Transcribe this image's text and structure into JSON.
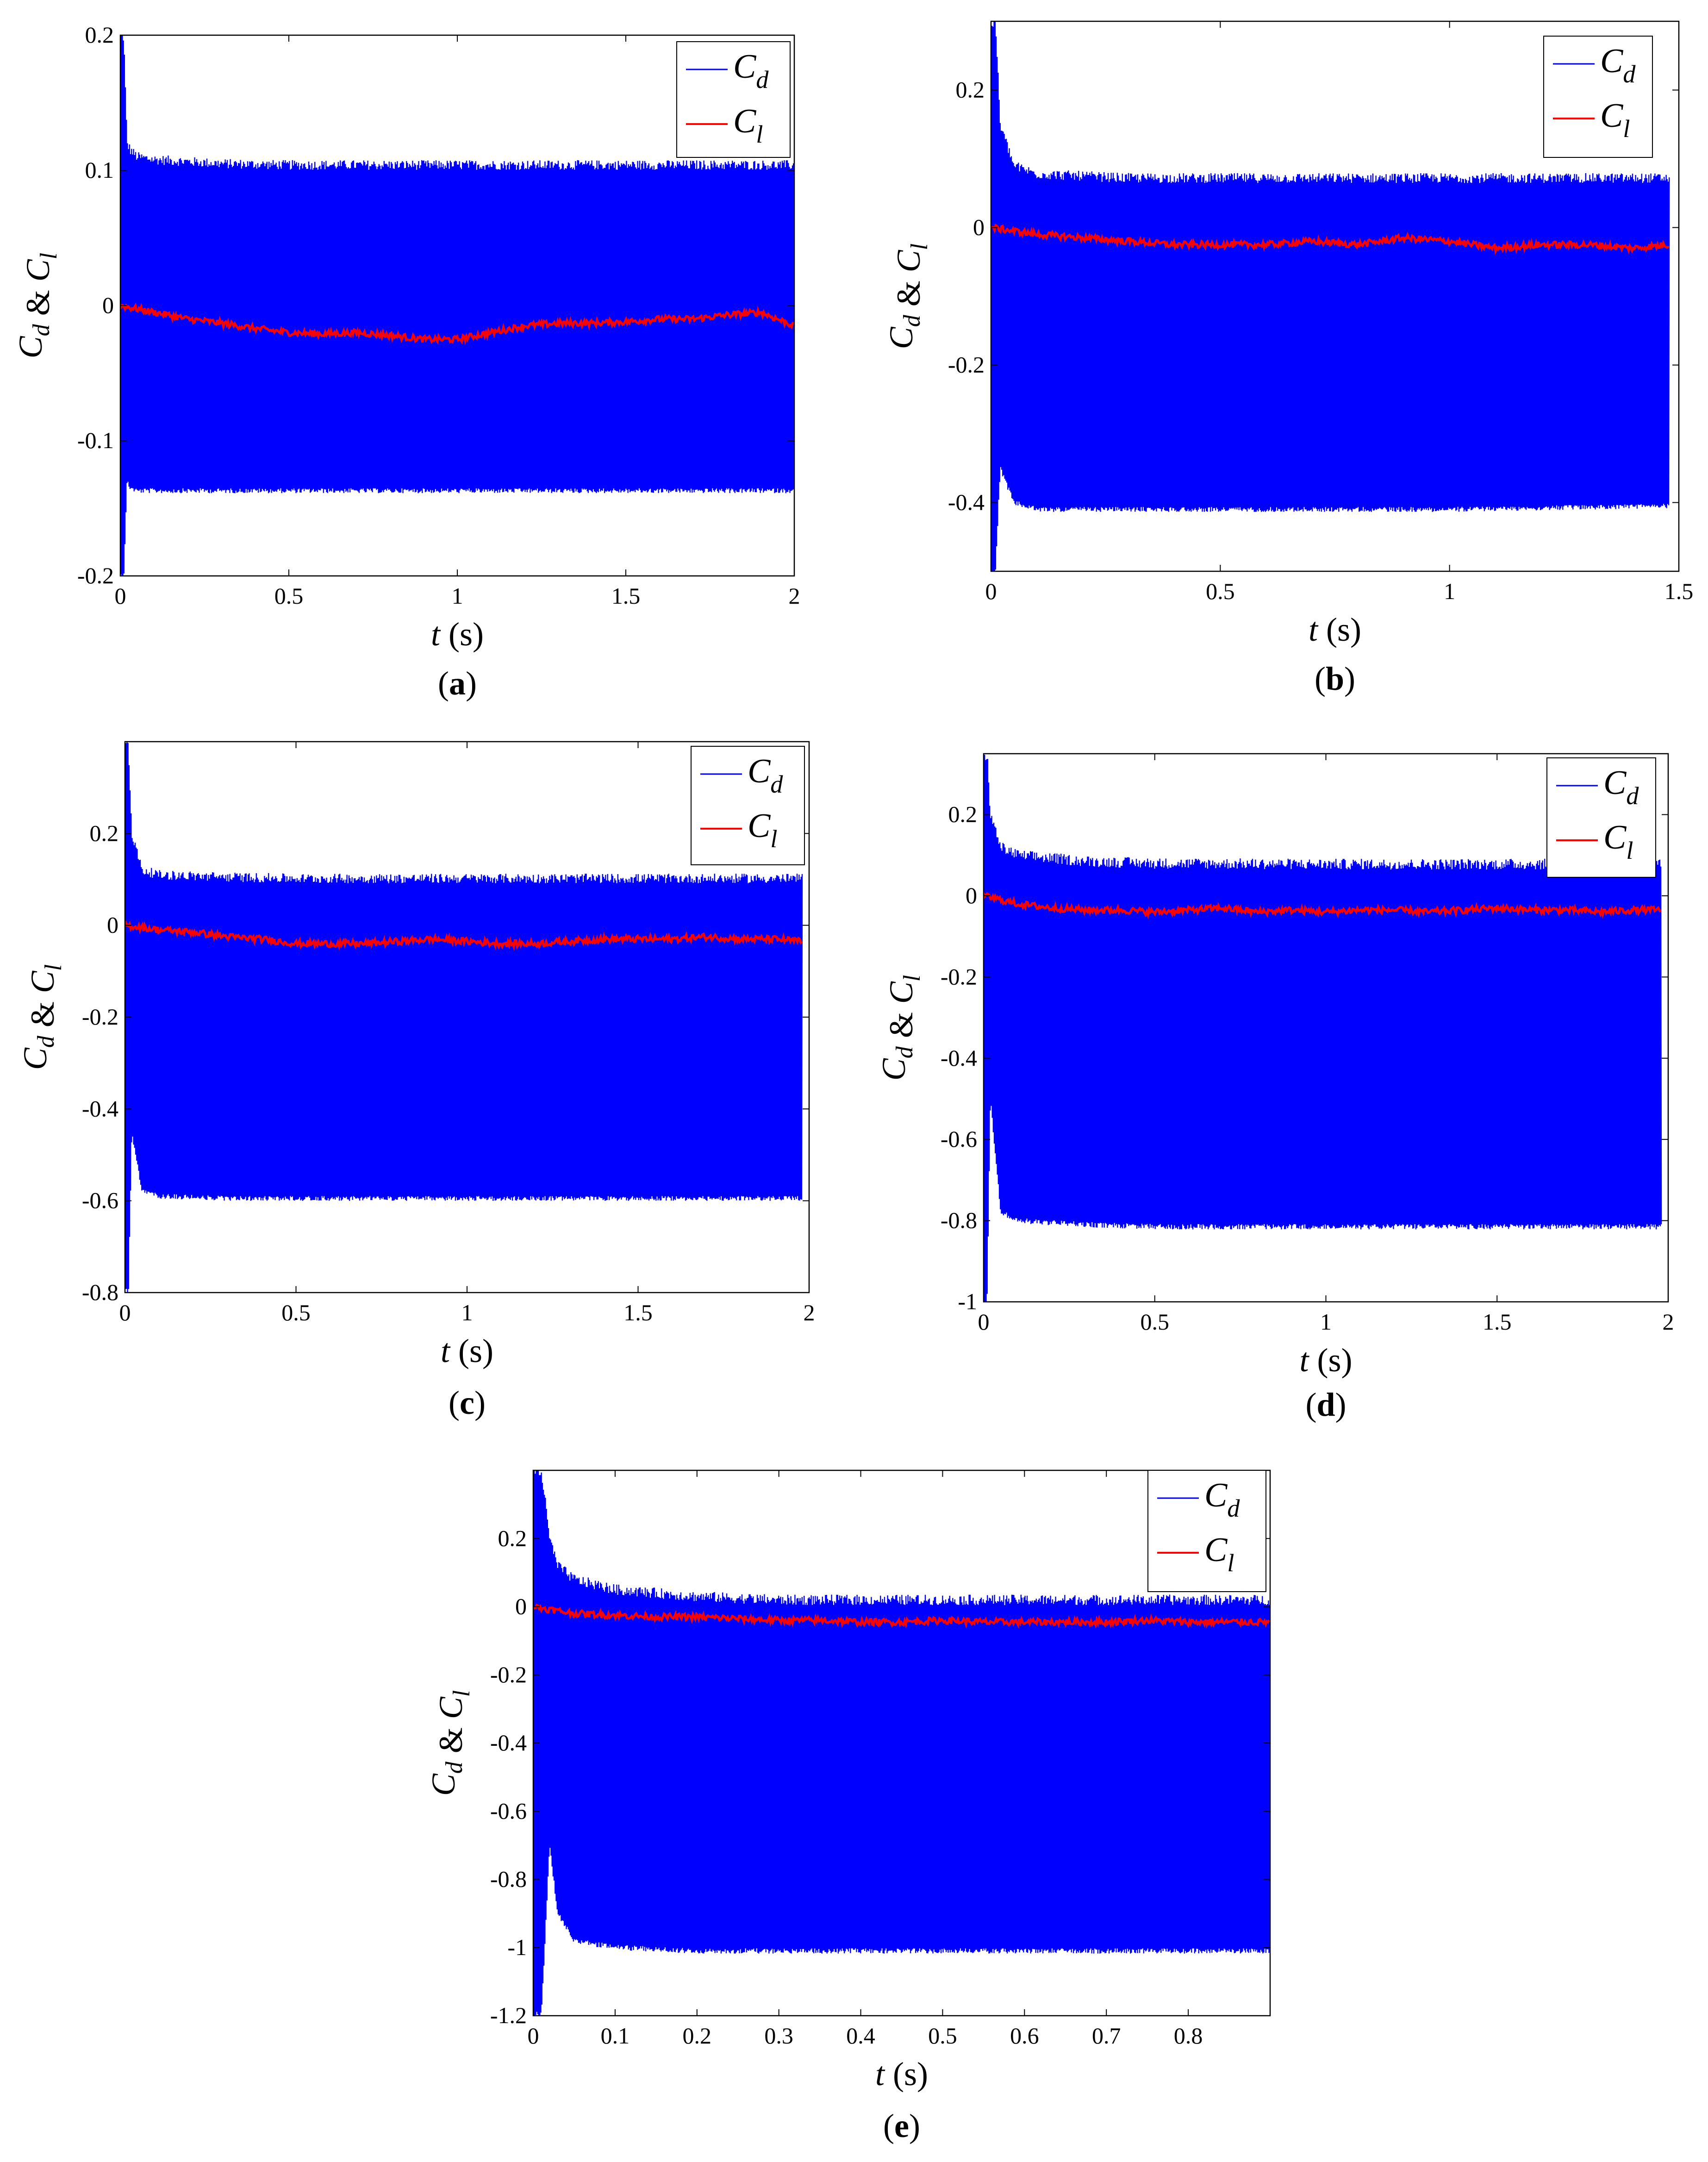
{
  "colors": {
    "drag": "#0000ff",
    "lift": "#ff0000",
    "axis": "#000000",
    "background": "#ffffff"
  },
  "chart_data": [
    {
      "panel": "a",
      "type": "line",
      "caption": "(a)",
      "xlabel": "t (s)",
      "ylabel": "Cd & Cl",
      "xlim": [
        0,
        2
      ],
      "ylim": [
        -0.2,
        0.2
      ],
      "xticks": [
        0,
        0.5,
        1,
        1.5,
        2
      ],
      "xtick_labels": [
        "0",
        "0.5",
        "1",
        "1.5",
        "2"
      ],
      "yticks": [
        -0.2,
        -0.1,
        0,
        0.1,
        0.2
      ],
      "ytick_labels": [
        "-0.2",
        "-0.1",
        "0",
        "0.1",
        "0.2"
      ],
      "legend_position": "top-right",
      "series": [
        {
          "name": "Cd",
          "base": "C",
          "sub": "d",
          "x": [
            0,
            0.01,
            0.02,
            0.03,
            0.05,
            0.1,
            0.3,
            0.5,
            1.0,
            1.5,
            2.0
          ],
          "upper": [
            0.2,
            0.2,
            0.12,
            0.115,
            0.11,
            0.108,
            0.105,
            0.104,
            0.104,
            0.104,
            0.104
          ],
          "lower": [
            -0.2,
            -0.2,
            -0.13,
            -0.135,
            -0.137,
            -0.137,
            -0.137,
            -0.137,
            -0.137,
            -0.137,
            -0.137
          ]
        },
        {
          "name": "Cl",
          "base": "C",
          "sub": "l",
          "x": [
            0,
            0.1,
            0.2,
            0.3,
            0.4,
            0.5,
            0.6,
            0.7,
            0.8,
            0.9,
            1.0,
            1.1,
            1.2,
            1.3,
            1.4,
            1.5,
            1.6,
            1.7,
            1.8,
            1.9,
            2.0
          ],
          "y": [
            0,
            -0.005,
            -0.01,
            -0.013,
            -0.017,
            -0.02,
            -0.021,
            -0.02,
            -0.022,
            -0.025,
            -0.025,
            -0.02,
            -0.015,
            -0.013,
            -0.013,
            -0.012,
            -0.01,
            -0.01,
            -0.007,
            -0.005,
            -0.015
          ]
        }
      ]
    },
    {
      "panel": "b",
      "type": "line",
      "caption": "(b)",
      "xlabel": "t (s)",
      "ylabel": "Cd & Cl",
      "xlim": [
        0,
        1.5
      ],
      "ylim": [
        -0.5,
        0.3
      ],
      "xticks": [
        0,
        0.5,
        1,
        1.5
      ],
      "xtick_labels": [
        "0",
        "0.5",
        "1",
        "1.5"
      ],
      "yticks": [
        -0.4,
        -0.2,
        0,
        0.2
      ],
      "ytick_labels": [
        "-0.4",
        "-0.2",
        "0",
        "0.2"
      ],
      "legend_position": "top-right",
      "series": [
        {
          "name": "Cd",
          "base": "C",
          "sub": "d",
          "x": [
            0,
            0.01,
            0.02,
            0.05,
            0.1,
            0.3,
            0.5,
            1.0,
            1.48
          ],
          "upper": [
            0.3,
            0.3,
            0.15,
            0.09,
            0.078,
            0.072,
            0.072,
            0.072,
            0.072
          ],
          "lower": [
            -0.5,
            -0.5,
            -0.35,
            -0.4,
            -0.41,
            -0.41,
            -0.41,
            -0.41,
            -0.405
          ]
        },
        {
          "name": "Cl",
          "base": "C",
          "sub": "l",
          "x": [
            0,
            0.1,
            0.2,
            0.3,
            0.4,
            0.5,
            0.6,
            0.7,
            0.8,
            0.9,
            1.0,
            1.1,
            1.2,
            1.3,
            1.4,
            1.48
          ],
          "y": [
            0,
            -0.01,
            -0.015,
            -0.02,
            -0.025,
            -0.025,
            -0.025,
            -0.02,
            -0.025,
            -0.015,
            -0.02,
            -0.03,
            -0.025,
            -0.025,
            -0.03,
            -0.025
          ]
        }
      ]
    },
    {
      "panel": "c",
      "type": "line",
      "caption": "(c)",
      "xlabel": "t (s)",
      "ylabel": "Cd & Cl",
      "xlim": [
        0,
        2
      ],
      "ylim": [
        -0.8,
        0.4
      ],
      "xticks": [
        0,
        0.5,
        1,
        1.5,
        2
      ],
      "xtick_labels": [
        "0",
        "0.5",
        "1",
        "1.5",
        "2"
      ],
      "yticks": [
        -0.8,
        -0.6,
        -0.4,
        -0.2,
        0,
        0.2
      ],
      "ytick_labels": [
        "-0.8",
        "-0.6",
        "-0.4",
        "-0.2",
        "0",
        "0.2"
      ],
      "legend_position": "top-right",
      "series": [
        {
          "name": "Cd",
          "base": "C",
          "sub": "d",
          "x": [
            0,
            0.01,
            0.02,
            0.05,
            0.1,
            0.3,
            0.5,
            1.0,
            1.5,
            1.98
          ],
          "upper": [
            0.4,
            0.4,
            0.2,
            0.12,
            0.11,
            0.105,
            0.102,
            0.102,
            0.102,
            0.102
          ],
          "lower": [
            -0.8,
            -0.8,
            -0.45,
            -0.58,
            -0.59,
            -0.595,
            -0.595,
            -0.595,
            -0.595,
            -0.595
          ]
        },
        {
          "name": "Cl",
          "base": "C",
          "sub": "l",
          "x": [
            0,
            0.1,
            0.2,
            0.3,
            0.4,
            0.5,
            0.6,
            0.7,
            0.8,
            0.9,
            1.0,
            1.1,
            1.2,
            1.3,
            1.4,
            1.5,
            1.6,
            1.7,
            1.8,
            1.9,
            1.98
          ],
          "y": [
            0,
            -0.01,
            -0.015,
            -0.025,
            -0.03,
            -0.04,
            -0.04,
            -0.04,
            -0.035,
            -0.03,
            -0.035,
            -0.04,
            -0.04,
            -0.035,
            -0.03,
            -0.03,
            -0.03,
            -0.025,
            -0.03,
            -0.03,
            -0.035
          ]
        }
      ]
    },
    {
      "panel": "d",
      "type": "line",
      "caption": "(d)",
      "xlabel": "t (s)",
      "ylabel": "Cd & Cl",
      "xlim": [
        0,
        2
      ],
      "ylim": [
        -1,
        0.35
      ],
      "xticks": [
        0,
        0.5,
        1,
        1.5,
        2
      ],
      "xtick_labels": [
        "0",
        "0.5",
        "1",
        "1.5",
        "2"
      ],
      "yticks": [
        -1,
        -0.8,
        -0.6,
        -0.4,
        -0.2,
        0,
        0.2
      ],
      "ytick_labels": [
        "-1",
        "-0.8",
        "-0.6",
        "-0.4",
        "-0.2",
        "0",
        "0.2"
      ],
      "legend_position": "top-right",
      "series": [
        {
          "name": "Cd",
          "base": "C",
          "sub": "d",
          "x": [
            0,
            0.01,
            0.02,
            0.05,
            0.1,
            0.3,
            0.5,
            1.0,
            1.5,
            1.98
          ],
          "upper": [
            0.35,
            0.35,
            0.2,
            0.12,
            0.1,
            0.085,
            0.08,
            0.078,
            0.078,
            0.078
          ],
          "lower": [
            -1,
            -1,
            -0.5,
            -0.78,
            -0.8,
            -0.81,
            -0.815,
            -0.815,
            -0.815,
            -0.815
          ]
        },
        {
          "name": "Cl",
          "base": "C",
          "sub": "l",
          "x": [
            0,
            0.1,
            0.2,
            0.3,
            0.4,
            0.5,
            0.6,
            0.7,
            0.8,
            0.9,
            1.0,
            1.1,
            1.2,
            1.3,
            1.4,
            1.5,
            1.6,
            1.7,
            1.8,
            1.9,
            1.98
          ],
          "y": [
            0,
            -0.02,
            -0.03,
            -0.035,
            -0.035,
            -0.04,
            -0.035,
            -0.03,
            -0.04,
            -0.035,
            -0.04,
            -0.035,
            -0.035,
            -0.04,
            -0.035,
            -0.03,
            -0.035,
            -0.035,
            -0.04,
            -0.035,
            -0.035
          ]
        }
      ]
    },
    {
      "panel": "e",
      "type": "line",
      "caption": "(e)",
      "xlabel": "t (s)",
      "ylabel": "Cd & Cl",
      "xlim": [
        0,
        0.9
      ],
      "ylim": [
        -1.2,
        0.4
      ],
      "xticks": [
        0,
        0.1,
        0.2,
        0.3,
        0.4,
        0.5,
        0.6,
        0.7,
        0.8
      ],
      "xtick_labels": [
        "0",
        "0.1",
        "0.2",
        "0.3",
        "0.4",
        "0.5",
        "0.6",
        "0.7",
        "0.8"
      ],
      "yticks": [
        -1.2,
        -1,
        -0.8,
        -0.6,
        -0.4,
        -0.2,
        0,
        0.2
      ],
      "ytick_labels": [
        "-1.2",
        "-1",
        "-0.8",
        "-0.6",
        "-0.4",
        "-0.2",
        "0",
        "0.2"
      ],
      "legend_position": "top-right",
      "series": [
        {
          "name": "Cd",
          "base": "C",
          "sub": "d",
          "x": [
            0,
            0.005,
            0.01,
            0.02,
            0.03,
            0.05,
            0.1,
            0.2,
            0.3,
            0.5,
            0.7,
            0.9
          ],
          "upper": [
            0.4,
            0.4,
            0.4,
            0.2,
            0.12,
            0.08,
            0.05,
            0.03,
            0.02,
            0.02,
            0.02,
            0.02
          ],
          "lower": [
            -1.2,
            -1.2,
            -1.2,
            -0.7,
            -0.9,
            -0.98,
            -1.0,
            -1.01,
            -1.01,
            -1.01,
            -1.01,
            -1.01
          ]
        },
        {
          "name": "Cl",
          "base": "C",
          "sub": "l",
          "x": [
            0,
            0.05,
            0.1,
            0.15,
            0.2,
            0.25,
            0.3,
            0.35,
            0.4,
            0.45,
            0.5,
            0.55,
            0.6,
            0.65,
            0.7,
            0.75,
            0.8,
            0.85,
            0.9
          ],
          "y": [
            0,
            -0.02,
            -0.025,
            -0.03,
            -0.03,
            -0.035,
            -0.04,
            -0.04,
            -0.045,
            -0.045,
            -0.04,
            -0.045,
            -0.045,
            -0.045,
            -0.045,
            -0.04,
            -0.045,
            -0.045,
            -0.045
          ]
        }
      ]
    }
  ]
}
